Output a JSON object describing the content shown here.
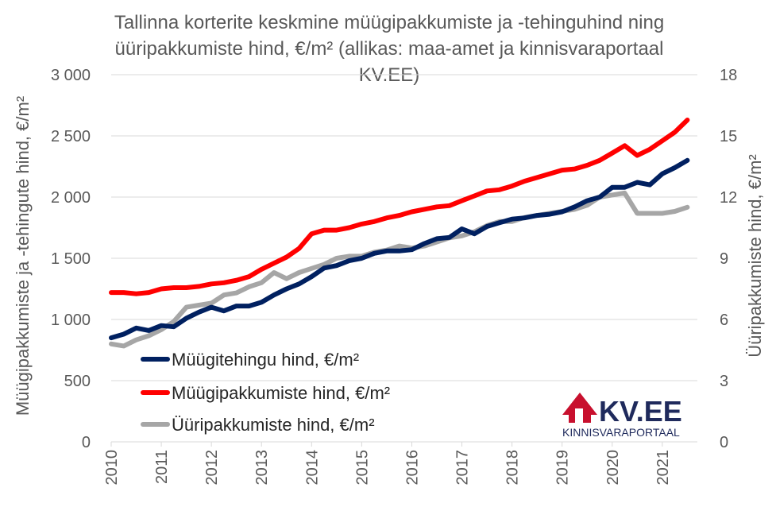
{
  "chart_data": {
    "type": "line",
    "title": "Tallinna korterite keskmine müügipakkumiste ja -tehinguhind ning üüripakkumiste hind, €/m² (allikas: maa-amet ja kinnisvaraportaal KV.EE)",
    "ylabel_left": "Müügipakkumiste ja -tehingute hind, €/m²",
    "ylabel_right": "Üüripakkumiste hind, €/m²",
    "ylim_left": [
      0,
      3000
    ],
    "ylim_right": [
      0,
      18
    ],
    "y_ticks_left": [
      "0",
      "500",
      "1 000",
      "1 500",
      "2 000",
      "2 500",
      "3 000"
    ],
    "y_ticks_right": [
      "0",
      "3",
      "6",
      "9",
      "12",
      "15",
      "18"
    ],
    "x_ticks": [
      "2010",
      "2011",
      "2012",
      "2013",
      "2014",
      "2015",
      "2016",
      "2017",
      "2018",
      "2019",
      "2020",
      "2021"
    ],
    "legend_placement": "bottom-left",
    "series": [
      {
        "name": "Müügitehingu hind, €/m²",
        "axis": "left",
        "color": "#002060",
        "x": [
          2010.0,
          2010.25,
          2010.5,
          2010.75,
          2011.0,
          2011.25,
          2011.5,
          2011.75,
          2012.0,
          2012.25,
          2012.5,
          2012.75,
          2013.0,
          2013.25,
          2013.5,
          2013.75,
          2014.0,
          2014.25,
          2014.5,
          2014.75,
          2015.0,
          2015.25,
          2015.5,
          2015.75,
          2016.0,
          2016.25,
          2016.5,
          2016.75,
          2017.0,
          2017.25,
          2017.5,
          2017.75,
          2018.0,
          2018.25,
          2018.5,
          2018.75,
          2019.0,
          2019.25,
          2019.5,
          2019.75,
          2020.0,
          2020.25,
          2020.5,
          2020.75,
          2021.0,
          2021.25,
          2021.5
        ],
        "values": [
          850,
          880,
          930,
          910,
          950,
          940,
          1010,
          1060,
          1100,
          1070,
          1110,
          1110,
          1140,
          1200,
          1250,
          1290,
          1350,
          1420,
          1440,
          1480,
          1500,
          1540,
          1560,
          1560,
          1570,
          1620,
          1660,
          1670,
          1740,
          1700,
          1760,
          1790,
          1820,
          1830,
          1850,
          1860,
          1880,
          1920,
          1970,
          2000,
          2080,
          2080,
          2120,
          2100,
          2190,
          2240,
          2300
        ]
      },
      {
        "name": "Müügipakkumiste hind, €/m²",
        "axis": "left",
        "color": "#ff0000",
        "x": [
          2010.0,
          2010.25,
          2010.5,
          2010.75,
          2011.0,
          2011.25,
          2011.5,
          2011.75,
          2012.0,
          2012.25,
          2012.5,
          2012.75,
          2013.0,
          2013.25,
          2013.5,
          2013.75,
          2014.0,
          2014.25,
          2014.5,
          2014.75,
          2015.0,
          2015.25,
          2015.5,
          2015.75,
          2016.0,
          2016.25,
          2016.5,
          2016.75,
          2017.0,
          2017.25,
          2017.5,
          2017.75,
          2018.0,
          2018.25,
          2018.5,
          2018.75,
          2019.0,
          2019.25,
          2019.5,
          2019.75,
          2020.0,
          2020.25,
          2020.5,
          2020.75,
          2021.0,
          2021.25,
          2021.5
        ],
        "values": [
          1220,
          1220,
          1210,
          1220,
          1250,
          1260,
          1260,
          1270,
          1290,
          1300,
          1320,
          1350,
          1410,
          1460,
          1510,
          1580,
          1700,
          1730,
          1730,
          1750,
          1780,
          1800,
          1830,
          1850,
          1880,
          1900,
          1920,
          1930,
          1970,
          2010,
          2050,
          2060,
          2090,
          2130,
          2160,
          2190,
          2220,
          2230,
          2260,
          2300,
          2360,
          2420,
          2340,
          2390,
          2460,
          2530,
          2630
        ]
      },
      {
        "name": "Üüripakkumiste hind, €/m²",
        "axis": "right",
        "color": "#a6a6a6",
        "x": [
          2010.0,
          2010.25,
          2010.5,
          2010.75,
          2011.0,
          2011.25,
          2011.5,
          2011.75,
          2012.0,
          2012.25,
          2012.5,
          2012.75,
          2013.0,
          2013.25,
          2013.5,
          2013.75,
          2014.0,
          2014.25,
          2014.5,
          2014.75,
          2015.0,
          2015.25,
          2015.5,
          2015.75,
          2016.0,
          2016.25,
          2016.5,
          2016.75,
          2017.0,
          2017.25,
          2017.5,
          2017.75,
          2018.0,
          2018.25,
          2018.5,
          2018.75,
          2019.0,
          2019.25,
          2019.5,
          2019.75,
          2020.0,
          2020.25,
          2020.5,
          2020.75,
          2021.0,
          2021.25,
          2021.5
        ],
        "values": [
          4.8,
          4.7,
          5.0,
          5.2,
          5.5,
          5.9,
          6.6,
          6.7,
          6.8,
          7.2,
          7.3,
          7.6,
          7.8,
          8.3,
          8.0,
          8.3,
          8.5,
          8.7,
          9.0,
          9.1,
          9.1,
          9.3,
          9.4,
          9.6,
          9.5,
          9.6,
          9.8,
          10.0,
          10.1,
          10.3,
          10.6,
          10.8,
          10.8,
          11.0,
          11.1,
          11.2,
          11.3,
          11.4,
          11.6,
          12.0,
          12.1,
          12.2,
          11.2,
          11.2,
          11.2,
          11.3,
          11.5
        ]
      }
    ]
  },
  "logo": {
    "brand": "KV.EE",
    "tagline": "KINNISVARAPORTAAL",
    "color": "#c8102e",
    "text_color": "#1f2a5c"
  }
}
